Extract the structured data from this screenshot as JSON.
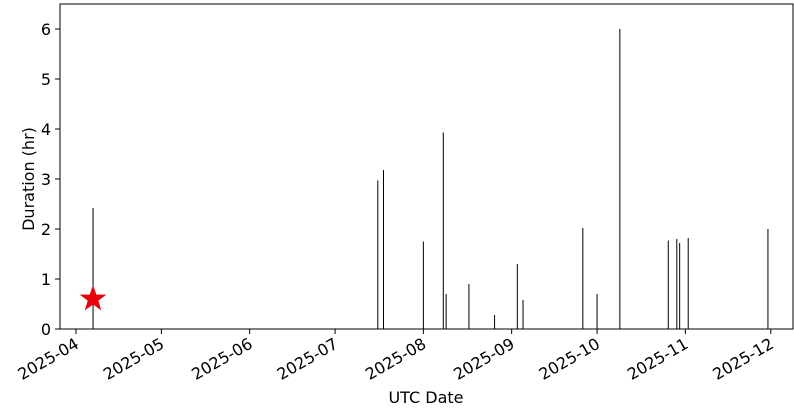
{
  "chart_data": {
    "type": "bar",
    "xlabel": "UTC Date",
    "ylabel": "Duration (hr)",
    "x": [
      97,
      197,
      199,
      213,
      220,
      221,
      229,
      238,
      246,
      248,
      269,
      274,
      282,
      299,
      302,
      303,
      306,
      334
    ],
    "values": [
      2.42,
      2.97,
      3.18,
      1.75,
      3.93,
      0.7,
      0.9,
      0.28,
      1.3,
      0.58,
      2.02,
      0.7,
      6.0,
      1.77,
      1.8,
      1.72,
      1.82,
      2.0
    ],
    "color": "#000000",
    "highlight": {
      "x": 97,
      "y": 0.6,
      "color": "#e8000b",
      "marker": "star"
    },
    "xlim": [
      85.4,
      342.8
    ],
    "xticks": [
      {
        "value": 91,
        "label": "2025-04"
      },
      {
        "value": 121,
        "label": "2025-05"
      },
      {
        "value": 152,
        "label": "2025-06"
      },
      {
        "value": 182,
        "label": "2025-07"
      },
      {
        "value": 213,
        "label": "2025-08"
      },
      {
        "value": 244,
        "label": "2025-09"
      },
      {
        "value": 274,
        "label": "2025-10"
      },
      {
        "value": 305,
        "label": "2025-11"
      },
      {
        "value": 335,
        "label": "2025-12"
      }
    ],
    "ylim": [
      0,
      6.5
    ],
    "yticks": [
      0,
      1,
      2,
      3,
      4,
      5,
      6
    ],
    "grid": false
  }
}
